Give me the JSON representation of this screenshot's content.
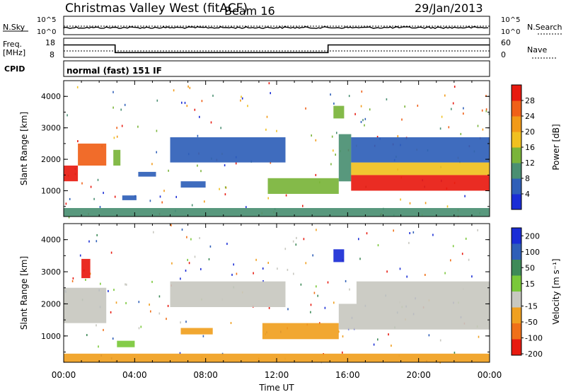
{
  "header": {
    "station": "Christmas Valley West (fitACF)",
    "beam": "Beam 16",
    "date": "29/Jan/2013"
  },
  "strips": {
    "nsky_label": "N.Sky",
    "nsearch_label": "N.Search",
    "nsky_ticks": [
      "10^5",
      "10^0"
    ],
    "nsearch_ticks": [
      "10^5",
      "10^0"
    ],
    "freq_label": "Freq.",
    "freq_unit": "[MHz]",
    "freq_ticks": [
      "18",
      "8"
    ],
    "nave_label": "Nave",
    "nave_ticks": [
      "60",
      "0"
    ],
    "cpid_label": "CPID",
    "cpid_text": "normal (fast) 151 IF"
  },
  "chart_data": [
    {
      "type": "heatmap",
      "name": "power",
      "ylabel": "Slant Range [km]",
      "y_ticks": [
        "1000",
        "2000",
        "3000",
        "4000"
      ],
      "ylim": [
        180,
        4500
      ],
      "colorbar_label": "Power [dB]",
      "colorbar_ticks": [
        "4",
        "8",
        "12",
        "16",
        "20",
        "24",
        "28"
      ],
      "colors": [
        "#1a2dd6",
        "#2f5fb8",
        "#4a8f72",
        "#7ab43a",
        "#f0c020",
        "#f29a18",
        "#f06018",
        "#e81a10"
      ],
      "regions": [
        {
          "t0": 0.0,
          "t1": 0.8,
          "r0": 1300,
          "r1": 1800,
          "level": 7
        },
        {
          "t0": 0.8,
          "t1": 2.4,
          "r0": 1800,
          "r1": 2500,
          "level": 6
        },
        {
          "t0": 2.8,
          "t1": 3.2,
          "r0": 1800,
          "r1": 2300,
          "level": 3
        },
        {
          "t0": 3.3,
          "t1": 4.1,
          "r0": 700,
          "r1": 850,
          "level": 1
        },
        {
          "t0": 4.2,
          "t1": 5.2,
          "r0": 1450,
          "r1": 1600,
          "level": 1
        },
        {
          "t0": 6.6,
          "t1": 8.0,
          "r0": 1100,
          "r1": 1300,
          "level": 1
        },
        {
          "t0": 6.0,
          "t1": 12.5,
          "r0": 1900,
          "r1": 2700,
          "level": 1
        },
        {
          "t0": 11.5,
          "t1": 15.5,
          "r0": 900,
          "r1": 1400,
          "level": 3
        },
        {
          "t0": 15.5,
          "t1": 16.2,
          "r0": 1300,
          "r1": 2800,
          "level": 2
        },
        {
          "t0": 15.2,
          "t1": 15.8,
          "r0": 3300,
          "r1": 3700,
          "level": 3
        },
        {
          "t0": 16.2,
          "t1": 24.0,
          "r0": 1000,
          "r1": 1500,
          "level": 7
        },
        {
          "t0": 16.2,
          "t1": 24.0,
          "r0": 1500,
          "r1": 1900,
          "level": 4
        },
        {
          "t0": 16.2,
          "t1": 24.0,
          "r0": 1900,
          "r1": 2700,
          "level": 1
        },
        {
          "t0": 0.0,
          "t1": 24.0,
          "r0": 180,
          "r1": 450,
          "level": 2
        }
      ]
    },
    {
      "type": "heatmap",
      "name": "velocity",
      "ylabel": "Slant Range [km]",
      "y_ticks": [
        "1000",
        "2000",
        "3000",
        "4000"
      ],
      "ylim": [
        180,
        4500
      ],
      "colorbar_label": "Velocity [m s⁻¹]",
      "colorbar_ticks": [
        "200",
        "100",
        "50",
        "15",
        "-15",
        "-50",
        "-100",
        "-200"
      ],
      "colors": [
        "#1a2dd6",
        "#2f5fb8",
        "#3e8a58",
        "#7ac83a",
        "#c8c8c0",
        "#f0a020",
        "#f07018",
        "#e81a10"
      ],
      "regions": [
        {
          "t0": 0.0,
          "t1": 2.4,
          "r0": 1400,
          "r1": 2500,
          "level": 4
        },
        {
          "t0": 1.0,
          "t1": 1.5,
          "r0": 2800,
          "r1": 3400,
          "level": 7
        },
        {
          "t0": 3.0,
          "t1": 4.0,
          "r0": 650,
          "r1": 850,
          "level": 3
        },
        {
          "t0": 6.6,
          "t1": 8.4,
          "r0": 1050,
          "r1": 1250,
          "level": 5
        },
        {
          "t0": 6.0,
          "t1": 12.5,
          "r0": 1900,
          "r1": 2700,
          "level": 4
        },
        {
          "t0": 11.2,
          "t1": 15.5,
          "r0": 900,
          "r1": 1400,
          "level": 5
        },
        {
          "t0": 15.2,
          "t1": 15.8,
          "r0": 3300,
          "r1": 3700,
          "level": 0
        },
        {
          "t0": 15.5,
          "t1": 24.0,
          "r0": 1200,
          "r1": 2000,
          "level": 4
        },
        {
          "t0": 16.5,
          "t1": 24.0,
          "r0": 2000,
          "r1": 2700,
          "level": 4
        },
        {
          "t0": 0.0,
          "t1": 24.0,
          "r0": 180,
          "r1": 450,
          "level": 5
        }
      ]
    }
  ],
  "x_axis": {
    "ticks": [
      "00:00",
      "04:00",
      "08:00",
      "12:00",
      "16:00",
      "20:00",
      "00:00"
    ],
    "xlabel": "Time UT",
    "range_hours": [
      0,
      24
    ]
  },
  "frequency_steps": [
    {
      "t0": 0.0,
      "t1": 2.9,
      "mhz": 14.5
    },
    {
      "t0": 2.9,
      "t1": 14.9,
      "mhz": 10.5
    },
    {
      "t0": 14.9,
      "t1": 24.0,
      "mhz": 14.5
    }
  ]
}
